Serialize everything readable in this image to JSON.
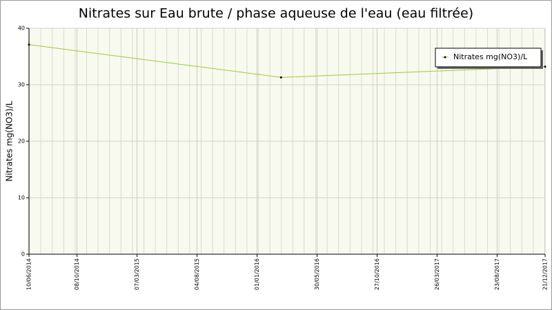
{
  "chart_data": {
    "type": "line",
    "title": "Nitrates sur Eau brute / phase aqueuse de l'eau (eau filtrée)",
    "y_label": "Nitrates mg(NO3)/L",
    "x": [
      "10/06/2014",
      "01/03/2016",
      "21/12/2017"
    ],
    "series": [
      {
        "name": "Nitrates mg(NO3)/L",
        "color": "#99cc33",
        "values": [
          37.1,
          31.3,
          33.2
        ]
      }
    ],
    "xlim": [
      "10/06/2014",
      "21/12/2017"
    ],
    "xticks": [
      "10/06/2014",
      "08/10/2014",
      "07/03/2015",
      "04/08/2015",
      "01/01/2016",
      "30/05/2016",
      "27/10/2016",
      "26/03/2017",
      "23/08/2017",
      "21/12/2017"
    ],
    "ylim": [
      0,
      40
    ],
    "yticks": [
      0,
      10,
      20,
      30,
      40
    ],
    "grid": true,
    "legend": "upper right"
  }
}
